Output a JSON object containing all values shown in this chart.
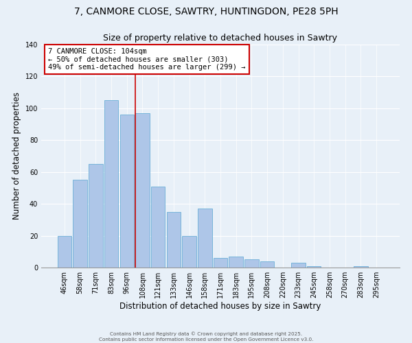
{
  "title": "7, CANMORE CLOSE, SAWTRY, HUNTINGDON, PE28 5PH",
  "subtitle": "Size of property relative to detached houses in Sawtry",
  "xlabel": "Distribution of detached houses by size in Sawtry",
  "ylabel": "Number of detached properties",
  "bar_labels": [
    "46sqm",
    "58sqm",
    "71sqm",
    "83sqm",
    "96sqm",
    "108sqm",
    "121sqm",
    "133sqm",
    "146sqm",
    "158sqm",
    "171sqm",
    "183sqm",
    "195sqm",
    "208sqm",
    "220sqm",
    "233sqm",
    "245sqm",
    "258sqm",
    "270sqm",
    "283sqm",
    "295sqm"
  ],
  "bar_values": [
    20,
    55,
    65,
    105,
    96,
    97,
    51,
    35,
    20,
    37,
    6,
    7,
    5,
    4,
    0,
    3,
    1,
    0,
    0,
    1,
    0
  ],
  "bar_color": "#aec6e8",
  "bar_edge_color": "#6aaed6",
  "vline_color": "#cc0000",
  "vline_index": 5,
  "annotation_text": "7 CANMORE CLOSE: 104sqm\n← 50% of detached houses are smaller (303)\n49% of semi-detached houses are larger (299) →",
  "annotation_box_color": "#ffffff",
  "annotation_box_edge": "#cc0000",
  "ylim": [
    0,
    140
  ],
  "yticks": [
    0,
    20,
    40,
    60,
    80,
    100,
    120,
    140
  ],
  "bg_color": "#e8f0f8",
  "footer_line1": "Contains HM Land Registry data © Crown copyright and database right 2025.",
  "footer_line2": "Contains public sector information licensed under the Open Government Licence v3.0.",
  "title_fontsize": 10,
  "xlabel_fontsize": 8.5,
  "ylabel_fontsize": 8.5,
  "annotation_fontsize": 7.5,
  "tick_fontsize": 7
}
